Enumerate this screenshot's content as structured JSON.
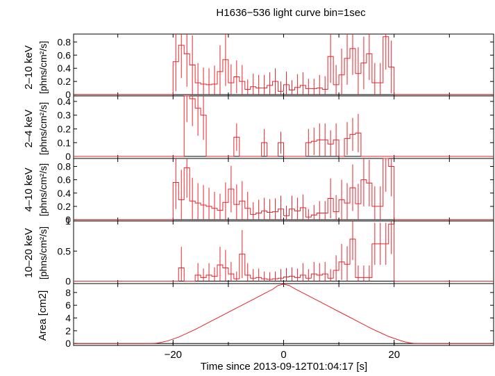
{
  "title": "H1636−536 light curve bin=1sec",
  "colors": {
    "data": "#e8222a",
    "axis": "#000000",
    "background": "#ffffff"
  },
  "chart_data": [
    {
      "type": "line",
      "step": true,
      "ylabel_band": "2–10 keV",
      "ylabel_unit": "[phns/cm²/s]",
      "xlim": [
        -38,
        38
      ],
      "ylim": [
        -0.02,
        0.92
      ],
      "yticks": [
        0,
        0.2,
        0.4,
        0.6,
        0.8
      ],
      "yticklabels": [
        "0",
        "0.2",
        "0.4",
        "0.6",
        "0.8"
      ],
      "x_start": -20,
      "values": [
        0.5,
        0.75,
        0.62,
        0.45,
        0.18,
        0.16,
        0.15,
        0.16,
        0.35,
        0.53,
        0.18,
        0.27,
        0.2,
        0.08,
        0.12,
        0.1,
        0.1,
        0.14,
        0.2,
        0.05,
        0.15,
        0.07,
        0.11,
        0.14,
        0.09,
        0.09,
        0.1,
        0.08,
        0.58,
        0.15,
        0.3,
        0.55,
        0.7,
        0.32,
        0.48,
        0.62,
        0.18,
        0.18,
        0.88,
        0.42
      ],
      "errors": [
        0.45,
        0.5,
        0.5,
        0.45,
        0.3,
        0.25,
        0.25,
        0.28,
        0.4,
        0.4,
        0.28,
        0.25,
        0.25,
        0.15,
        0.2,
        0.2,
        0.2,
        0.2,
        0.2,
        0.15,
        0.2,
        0.15,
        0.2,
        0.2,
        0.15,
        0.15,
        0.2,
        0.2,
        0.4,
        0.3,
        0.4,
        0.4,
        0.4,
        0.4,
        0.4,
        0.4,
        0.3,
        0.3,
        0.5,
        0.4
      ]
    },
    {
      "type": "line",
      "step": true,
      "ylabel_band": "2–4 keV",
      "ylabel_unit": "[phns/cm²/s]",
      "xlim": [
        -38,
        38
      ],
      "ylim": [
        -0.015,
        0.44
      ],
      "yticks": [
        0,
        0.1,
        0.2,
        0.3,
        0.4
      ],
      "yticklabels": [
        "0",
        "0.1",
        "0.2",
        "0.3",
        "0.4"
      ],
      "x_start": -18,
      "values": [
        0.45,
        0.42,
        0.35,
        0.3,
        0,
        0,
        0,
        0,
        0,
        0.14,
        0,
        0,
        0,
        0,
        0.1,
        0,
        0,
        0.1,
        0,
        0,
        0,
        0,
        0.1,
        0.11,
        0.12,
        0.12,
        0.09,
        0.12,
        0,
        0.13,
        0.16,
        0.17
      ],
      "errors": [
        0.2,
        0.2,
        0.2,
        0.18,
        0,
        0,
        0,
        0,
        0,
        0.1,
        0,
        0,
        0,
        0,
        0.1,
        0,
        0,
        0.08,
        0,
        0,
        0,
        0,
        0.1,
        0.1,
        0.12,
        0.12,
        0.1,
        0.12,
        0,
        0.12,
        0.12,
        0.14
      ]
    },
    {
      "type": "line",
      "step": true,
      "ylabel_band": "4–10 keV",
      "ylabel_unit": "[phns/cm²/s]",
      "xlim": [
        -38,
        38
      ],
      "ylim": [
        -0.02,
        0.92
      ],
      "yticks": [
        0,
        0.2,
        0.4,
        0.6,
        0.8
      ],
      "yticklabels": [
        "0",
        "0.2",
        "0.4",
        "0.6",
        "0.8"
      ],
      "x_start": -20,
      "values": [
        0.56,
        0.3,
        0.78,
        0.28,
        0.25,
        0.22,
        0.2,
        0.17,
        0.14,
        0.26,
        0.46,
        0.23,
        0.28,
        0.17,
        0.08,
        0.1,
        0.13,
        0.11,
        0.12,
        0.16,
        0.06,
        0.16,
        0.13,
        0.18,
        0.04,
        0.07,
        0.1,
        0.1,
        0.32,
        0.12,
        0.3,
        0.25,
        0.48,
        0.24,
        0.6,
        0.55,
        0.2,
        0.2,
        0.92,
        0.8
      ],
      "errors": [
        0.4,
        0.45,
        0.45,
        0.35,
        0.3,
        0.3,
        0.28,
        0.25,
        0.25,
        0.3,
        0.35,
        0.3,
        0.3,
        0.25,
        0.18,
        0.2,
        0.2,
        0.2,
        0.2,
        0.2,
        0.15,
        0.2,
        0.2,
        0.2,
        0.12,
        0.15,
        0.18,
        0.18,
        0.3,
        0.25,
        0.3,
        0.3,
        0.35,
        0.3,
        0.4,
        0.35,
        0.3,
        0.3,
        0.5,
        0.45
      ]
    },
    {
      "type": "line",
      "step": true,
      "ylabel_band": "10–20 keV",
      "ylabel_unit": "[phns/cm²/s]",
      "xlim": [
        -38,
        38
      ],
      "ylim": [
        -0.04,
        1.0
      ],
      "yticks": [
        0,
        0.5,
        1
      ],
      "yticklabels": [
        "0",
        "0.5",
        "1"
      ],
      "x_start": -20,
      "values": [
        0,
        0.22,
        0,
        0,
        0.1,
        0.06,
        0.1,
        0.08,
        0.27,
        0.22,
        0.12,
        0.04,
        0.45,
        0.1,
        0.05,
        0.06,
        0.04,
        0.03,
        0.04,
        0.05,
        0.07,
        0.08,
        0.06,
        0.1,
        0.05,
        0.12,
        0.1,
        0.12,
        0.05,
        0.18,
        0.32,
        0.28,
        0.7,
        0.06,
        0.06,
        0.06,
        0.62,
        0.62,
        0.62,
        0.95
      ],
      "errors": [
        0,
        0.35,
        0,
        0,
        0.2,
        0.15,
        0.2,
        0.15,
        0.3,
        0.3,
        0.2,
        0.12,
        0.4,
        0.2,
        0.15,
        0.15,
        0.12,
        0.12,
        0.12,
        0.15,
        0.15,
        0.15,
        0.15,
        0.2,
        0.15,
        0.2,
        0.2,
        0.2,
        0.15,
        0.25,
        0.3,
        0.3,
        0.35,
        0.2,
        0.2,
        0.2,
        0.35,
        0.35,
        0.35,
        0.5
      ]
    },
    {
      "type": "line",
      "ylabel": "Area [cm2]",
      "xlabel": "Time since 2013-09-12T01:04:17 [s]",
      "xlim": [
        -38,
        38
      ],
      "ylim": [
        -0.3,
        9.4
      ],
      "yticks": [
        0,
        2,
        4,
        6,
        8
      ],
      "yticklabels": [
        "0",
        "2",
        "4",
        "6",
        "8"
      ],
      "xticks": [
        -20,
        0,
        20
      ],
      "xticklabels": [
        "−20",
        "0",
        "20"
      ],
      "x": [
        -38,
        -24,
        -23,
        -22,
        -21,
        -20,
        -19,
        -18,
        -16,
        -14,
        -12,
        -10,
        -8,
        -6,
        -4,
        -2,
        -1,
        0,
        1,
        2,
        4,
        6,
        8,
        10,
        12,
        14,
        16,
        18,
        19,
        20,
        21,
        22,
        23,
        24,
        38
      ],
      "y": [
        0,
        0,
        0.05,
        0.2,
        0.4,
        0.7,
        1.0,
        1.4,
        2.2,
        3.1,
        4.0,
        4.9,
        5.8,
        6.7,
        7.6,
        8.5,
        9.1,
        9.3,
        9.1,
        8.6,
        7.7,
        6.8,
        5.9,
        5.0,
        4.1,
        3.2,
        2.3,
        1.5,
        1.1,
        0.8,
        0.5,
        0.25,
        0.08,
        0,
        0
      ]
    }
  ]
}
